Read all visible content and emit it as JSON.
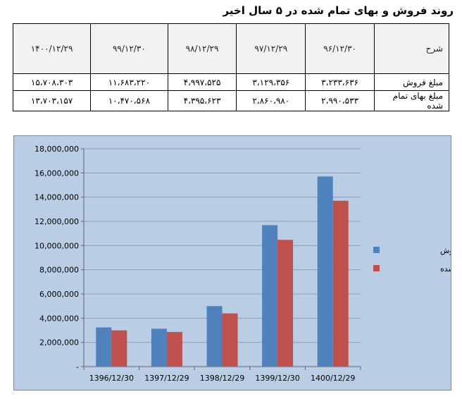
{
  "title": "روند فروش و بهای تمام شده در ۵ سال اخیر",
  "table": {
    "header_label": "شرح",
    "columns": [
      "۹۶/۱۲/۳۰",
      "۹۷/۱۲/۲۹",
      "۹۸/۱۲/۲۹",
      "۹۹/۱۲/۳۰",
      "۱۴۰۰/۱۲/۲۹"
    ],
    "rows": [
      {
        "label": "مبلغ فروش",
        "values": [
          "۳،۲۳۳،۶۳۶",
          "۳،۱۲۹،۳۵۶",
          "۴،۹۹۷،۵۲۵",
          "۱۱،۶۸۳،۲۲۰",
          "۱۵،۷۰۸،۳۰۳"
        ]
      },
      {
        "label": "مبلغ بهای تمام شده",
        "values": [
          "۲،۹۹۰،۵۳۳",
          "۲،۸۶۰،۹۸۰",
          "۴،۳۹۵،۶۲۳",
          "۱۰،۴۷۰،۵۶۸",
          "۱۳،۷۰۳،۱۵۷"
        ]
      }
    ]
  },
  "chart_data": {
    "type": "bar",
    "categories": [
      "1396/12/30",
      "1397/12/29",
      "1398/12/29",
      "1399/12/30",
      "1400/12/29"
    ],
    "series": [
      {
        "name": "مبلغ فروش",
        "color": "#4f81bd",
        "values": [
          3233636,
          3129356,
          4997525,
          11683220,
          15708303
        ]
      },
      {
        "name": "مبلغ بهای تمام شده",
        "color": "#c0504d",
        "values": [
          2990533,
          2860980,
          4395623,
          10470568,
          13703157
        ]
      }
    ],
    "ylim": [
      0,
      18000000
    ],
    "yticks": [
      "-",
      "2,000,000",
      "4,000,000",
      "6,000,000",
      "8,000,000",
      "10,000,000",
      "12,000,000",
      "14,000,000",
      "16,000,000",
      "18,000,000"
    ],
    "legend_position": "right",
    "grid": true,
    "background": "#b9cde4"
  }
}
